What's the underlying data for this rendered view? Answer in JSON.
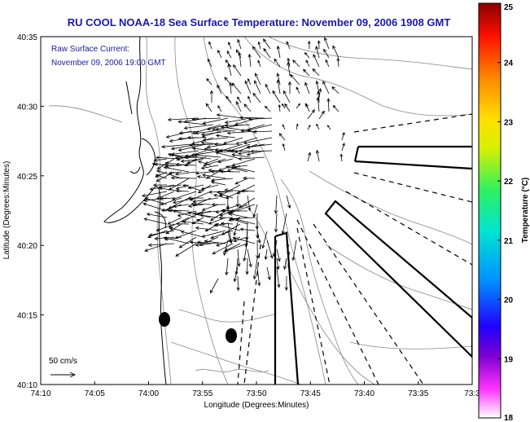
{
  "title": "RU COOL  NOAA-18  Sea Surface Temperature:  November 09, 2006 1908 GMT",
  "annotation_line1": "Raw Surface Current:",
  "annotation_line2": "November 09, 2006 19:00 GMT",
  "scale_label": "50 cm/s",
  "xlabel": "Longitude (Degrees:Minutes)",
  "ylabel": "Latitude (Degrees:Minutes)",
  "x_ticks": [
    "74:10",
    "74:05",
    "74:00",
    "73:55",
    "73:50",
    "73:45",
    "73:40",
    "73:35",
    "73:3"
  ],
  "y_ticks": [
    "40:35",
    "40:30",
    "40:25",
    "40:20",
    "40:15",
    "40:10"
  ],
  "colorbar": {
    "label": "Temperature (°C)",
    "ticks": [
      "25",
      "24",
      "23",
      "22",
      "21",
      "20",
      "19",
      "18"
    ],
    "range": [
      18,
      25
    ]
  },
  "colors": {
    "title": "#1a1aa6",
    "land_outline": "#000000",
    "bathymetry": "#888888"
  }
}
